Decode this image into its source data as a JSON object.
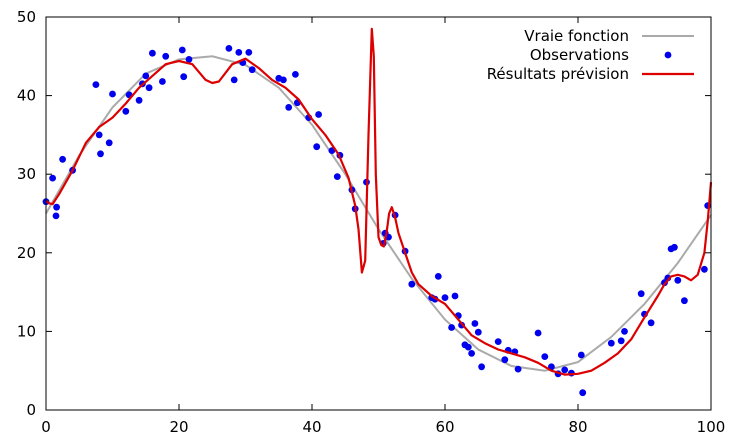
{
  "chart_data": {
    "type": "line",
    "title": "",
    "xlabel": "",
    "ylabel": "",
    "xlim": [
      0,
      100
    ],
    "ylim": [
      0,
      50
    ],
    "x_ticks": [
      0,
      20,
      40,
      60,
      80,
      100
    ],
    "y_ticks": [
      0,
      10,
      20,
      30,
      40,
      50
    ],
    "x_tick_labels": [
      "0",
      "20",
      "40",
      "60",
      "80",
      "100"
    ],
    "y_tick_labels": [
      "0",
      "10",
      "20",
      "30",
      "40",
      "50"
    ],
    "grid": false,
    "legend_position": "top-right",
    "legend": [
      "Vraie fonction",
      "Observations",
      "Résultats prévision"
    ],
    "colors": {
      "true_function": "#aaaaaa",
      "observations": "#0000ee",
      "forecast": "#dd0000"
    },
    "series": [
      {
        "name": "Vraie fonction",
        "kind": "line",
        "x": [
          0,
          5,
          10,
          15,
          20,
          25,
          30,
          35,
          40,
          45,
          50,
          55,
          60,
          65,
          70,
          75,
          80,
          85,
          90,
          95,
          100
        ],
        "y": [
          25.0,
          32.4,
          38.5,
          42.8,
          44.6,
          45.0,
          43.9,
          41.0,
          36.3,
          30.0,
          23.0,
          16.7,
          11.5,
          7.7,
          5.6,
          5.0,
          6.1,
          9.3,
          13.5,
          18.7,
          24.8
        ]
      },
      {
        "name": "Observations",
        "kind": "scatter",
        "x": [
          0,
          1,
          1.5,
          1.6,
          2.5,
          4,
          7.5,
          8,
          8.2,
          9.5,
          10,
          12,
          12.5,
          14,
          14.5,
          15,
          15.5,
          16,
          17.5,
          18,
          20.5,
          20.7,
          21.5,
          27.5,
          28.3,
          29,
          29.6,
          30.5,
          31,
          35,
          35.7,
          36.5,
          37.5,
          37.8,
          39.5,
          40.7,
          41,
          43,
          43.8,
          44.2,
          46,
          46.5,
          48.2,
          50.7,
          51,
          51.5,
          52.5,
          54,
          55,
          58,
          58.5,
          59,
          60,
          61,
          61.5,
          62,
          62.5,
          63,
          63.5,
          64,
          64.5,
          65,
          65.5,
          68,
          69,
          69.5,
          70.5,
          71,
          74,
          75,
          76,
          77,
          78,
          79,
          80.5,
          80.7,
          85,
          86.5,
          87,
          89.5,
          90,
          91,
          93,
          93.5,
          94,
          94.5,
          95,
          96,
          99,
          99.5
        ],
        "y": [
          26.5,
          29.5,
          24.7,
          25.8,
          31.9,
          30.5,
          41.4,
          35.0,
          32.6,
          34.0,
          40.2,
          38.0,
          40.1,
          39.4,
          41.5,
          42.5,
          41.0,
          45.4,
          41.8,
          45.0,
          45.8,
          42.4,
          44.6,
          46.0,
          42.0,
          45.5,
          44.2,
          45.5,
          43.3,
          42.2,
          42.0,
          38.5,
          42.7,
          39.1,
          37.2,
          33.5,
          37.6,
          33.0,
          29.7,
          32.4,
          28.0,
          25.6,
          29.0,
          21.2,
          22.5,
          22.0,
          24.8,
          20.2,
          16.0,
          14.3,
          14.1,
          17.0,
          14.3,
          10.5,
          14.5,
          12.0,
          10.8,
          8.3,
          8.0,
          7.2,
          11.0,
          9.9,
          5.5,
          8.7,
          6.4,
          7.6,
          7.4,
          5.2,
          9.8,
          6.8,
          5.5,
          4.6,
          5.1,
          4.7,
          7.0,
          2.2,
          8.5,
          8.8,
          10.0,
          14.8,
          12.2,
          11.1,
          16.2,
          16.8,
          20.5,
          20.7,
          16.5,
          13.9,
          17.9,
          26.0
        ]
      },
      {
        "name": "Résultats prévision",
        "kind": "line",
        "x": [
          0,
          0.5,
          1,
          2,
          4,
          6,
          8,
          10,
          12,
          14,
          16,
          18,
          20,
          22,
          24,
          25,
          26,
          28,
          30,
          32,
          34,
          36,
          38,
          40,
          42,
          44,
          45.5,
          46.5,
          47,
          47.5,
          48,
          48.5,
          49,
          49.3,
          49.6,
          50,
          50.4,
          50.8,
          51.2,
          51.6,
          52,
          52.5,
          53,
          54,
          55,
          56,
          58,
          60,
          62,
          64,
          66,
          68,
          70,
          72,
          74,
          76,
          78,
          80,
          82,
          84,
          86,
          88,
          90,
          92,
          93,
          94,
          95,
          96,
          97,
          98,
          99,
          99.5,
          100
        ],
        "y": [
          26.6,
          26.3,
          26.2,
          27.5,
          30.5,
          34.0,
          36.0,
          37.2,
          39.0,
          41.0,
          42.5,
          44.0,
          44.4,
          44.0,
          42.0,
          41.6,
          41.8,
          44.0,
          44.7,
          43.5,
          42.0,
          41.0,
          39.5,
          37.0,
          35.0,
          32.5,
          29.5,
          26.0,
          23.0,
          17.5,
          19.0,
          35.0,
          48.5,
          45.0,
          30.0,
          22.0,
          21.0,
          20.8,
          22.5,
          25.0,
          25.8,
          24.5,
          22.5,
          20.0,
          17.5,
          16.0,
          14.5,
          13.5,
          11.5,
          9.5,
          8.5,
          7.7,
          7.2,
          6.7,
          6.0,
          5.0,
          4.5,
          4.6,
          5.0,
          6.0,
          7.2,
          9.0,
          11.8,
          14.5,
          16.0,
          17.0,
          17.2,
          17.0,
          16.5,
          17.2,
          20.0,
          24.0,
          29.0
        ]
      }
    ]
  }
}
